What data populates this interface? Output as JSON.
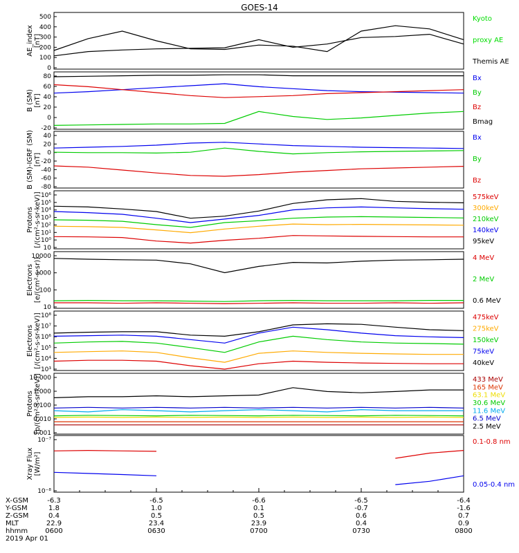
{
  "title": "GOES-14",
  "panels": [
    {
      "id": "ae",
      "ylabel": [
        "AE_index",
        "[nT]"
      ],
      "ticks": [
        "500",
        "400",
        "300",
        "200",
        "100",
        "0"
      ],
      "legend": [
        {
          "text": "Kyoto",
          "color": "#00dd00"
        },
        {
          "text": "proxy AE",
          "color": "#00dd00"
        },
        {
          "text": "Themis AE",
          "color": "#000000"
        }
      ]
    },
    {
      "id": "bsm",
      "ylabel": [
        "B (SM)",
        "[nT]"
      ],
      "ticks": [
        "80",
        "60",
        "40",
        "20",
        "0",
        "-20"
      ],
      "legend": [
        {
          "text": "Bx",
          "color": "#0000ee"
        },
        {
          "text": "By",
          "color": "#00cc00"
        },
        {
          "text": "Bz",
          "color": "#dd0000"
        },
        {
          "text": "Bmag",
          "color": "#000000"
        }
      ]
    },
    {
      "id": "bigrf",
      "ylabel": [
        "B (SM)-IGRF (SM)",
        "[nT]"
      ],
      "ticks": [
        "40",
        "20",
        "0",
        "-20",
        "-40",
        "-60",
        "-80"
      ],
      "legend": [
        {
          "text": "Bx",
          "color": "#0000ee"
        },
        {
          "text": "By",
          "color": "#00cc00"
        },
        {
          "text": "Bz",
          "color": "#dd0000"
        }
      ]
    },
    {
      "id": "protons1",
      "ylabel": [
        "Protons",
        "[/(cm²-s-sr-keV)]"
      ],
      "ticks": [
        "10⁶",
        "10⁵",
        "10⁴",
        "10³",
        "10²",
        "10¹",
        "10⁰",
        "10"
      ],
      "legend": [
        {
          "text": "575keV",
          "color": "#dd0000"
        },
        {
          "text": "300keV",
          "color": "#ffaa00"
        },
        {
          "text": "210keV",
          "color": "#00cc00"
        },
        {
          "text": "140keV",
          "color": "#0000ee"
        },
        {
          "text": "95keV",
          "color": "#000000"
        }
      ]
    },
    {
      "id": "electrons1",
      "ylabel": [
        "Electrons",
        "[e/(cm²-s-sr)]"
      ],
      "ticks": [
        "10000",
        "1000",
        "100",
        "10"
      ],
      "legend": [
        {
          "text": "4 MeV",
          "color": "#dd0000"
        },
        {
          "text": "2 MeV",
          "color": "#00cc00"
        },
        {
          "text": "0.6 MeV",
          "color": "#000000"
        }
      ]
    },
    {
      "id": "electrons2",
      "ylabel": [
        "Electrons",
        "[/(cm²-s-sr-keV)]"
      ],
      "ticks": [
        "10⁸",
        "10⁷",
        "10⁶",
        "10⁵",
        "10⁴",
        "10³"
      ],
      "legend": [
        {
          "text": "475keV",
          "color": "#dd0000"
        },
        {
          "text": "275keV",
          "color": "#ffaa00"
        },
        {
          "text": "150keV",
          "color": "#00cc00"
        },
        {
          "text": "75keV",
          "color": "#0000ee"
        },
        {
          "text": "40keV",
          "color": "#000000"
        }
      ]
    },
    {
      "id": "protons2",
      "ylabel": [
        "Protons",
        "[p/(cm²-s-sr-keV)]"
      ],
      "ticks": [
        "10.000",
        "1.000",
        "0.100",
        "0.010",
        "0.001"
      ],
      "legend": [
        {
          "text": "433 MeV",
          "color": "#aa0000"
        },
        {
          "text": "165 MeV",
          "color": "#dd3300"
        },
        {
          "text": "63.1 MeV",
          "color": "#eedd00"
        },
        {
          "text": "30.6 MeV",
          "color": "#00cc00"
        },
        {
          "text": "11.6 MeV",
          "color": "#00aaee"
        },
        {
          "text": "6.5 MeV",
          "color": "#0000cc"
        },
        {
          "text": "2.5 MeV",
          "color": "#000000"
        }
      ]
    },
    {
      "id": "xray",
      "ylabel": [
        "Xray Flux",
        "[W/m²]"
      ],
      "ticks": [
        "10⁻⁷",
        "10⁻⁸"
      ],
      "legend": [
        {
          "text": "0.1-0.8 nm",
          "color": "#dd0000"
        },
        {
          "text": "0.05-0.4 nm",
          "color": "#0000ee"
        }
      ]
    }
  ],
  "footer": {
    "rows": [
      {
        "label": "X-GSM",
        "values": [
          "-6.3",
          "-6.5",
          "-6.6",
          "-6.5",
          "-6.4"
        ]
      },
      {
        "label": "Y-GSM",
        "values": [
          "1.8",
          "1.0",
          "0.1",
          "-0.7",
          "-1.6"
        ]
      },
      {
        "label": "Z-GSM",
        "values": [
          "0.4",
          "0.5",
          "0.5",
          "0.6",
          "0.7"
        ]
      },
      {
        "label": "MLT",
        "values": [
          "22.9",
          "23.4",
          "23.9",
          "0.4",
          "0.9"
        ]
      },
      {
        "label": "hhmm",
        "values": [
          "0600",
          "0630",
          "0700",
          "0730",
          "0800"
        ]
      }
    ],
    "date": "2019 Apr 01"
  },
  "chart_data": [
    {
      "type": "line",
      "panel": "AE_index",
      "x": [
        "0600",
        "0610",
        "0620",
        "0630",
        "0640",
        "0650",
        "0700",
        "0710",
        "0720",
        "0730",
        "0740",
        "0750",
        "0800"
      ],
      "ylim": [
        0,
        500
      ],
      "series": [
        {
          "name": "Themis AE",
          "values": [
            160,
            270,
            340,
            250,
            175,
            170,
            210,
            200,
            150,
            340,
            390,
            360,
            260
          ]
        },
        {
          "name": "Kyoto proxy AE",
          "values": [
            110,
            150,
            165,
            175,
            180,
            185,
            260,
            190,
            220,
            280,
            290,
            310,
            220
          ]
        }
      ]
    },
    {
      "type": "line",
      "panel": "B (SM)",
      "ylim": [
        -25,
        85
      ],
      "series": [
        {
          "name": "Bx",
          "values": [
            45,
            48,
            52,
            56,
            60,
            64,
            58,
            54,
            50,
            48,
            47,
            46,
            45
          ]
        },
        {
          "name": "By",
          "values": [
            -20,
            -19,
            -18,
            -17,
            -17,
            -16,
            8,
            -2,
            -8,
            -5,
            0,
            5,
            8
          ]
        },
        {
          "name": "Bz",
          "values": [
            62,
            58,
            52,
            46,
            40,
            36,
            38,
            40,
            44,
            46,
            48,
            50,
            52
          ]
        },
        {
          "name": "Bmag",
          "values": [
            78,
            79,
            80,
            81,
            81,
            82,
            82,
            80,
            80,
            80,
            80,
            80,
            80
          ]
        }
      ]
    },
    {
      "type": "line",
      "panel": "B (SM)-IGRF (SM)",
      "ylim": [
        -85,
        45
      ],
      "series": [
        {
          "name": "Bx",
          "values": [
            8,
            10,
            12,
            15,
            20,
            22,
            18,
            14,
            12,
            10,
            9,
            8,
            7
          ]
        },
        {
          "name": "By",
          "values": [
            -2,
            -3,
            -3,
            -4,
            -2,
            8,
            0,
            -6,
            -3,
            -1,
            0,
            1,
            2
          ]
        },
        {
          "name": "Bz",
          "values": [
            -35,
            -38,
            -45,
            -52,
            -58,
            -60,
            -56,
            -50,
            -46,
            -42,
            -40,
            -38,
            -36
          ]
        }
      ]
    },
    {
      "type": "line",
      "panel": "Protons [/(cm2-s-sr-keV)]",
      "ylog": true,
      "ylim": [
        1,
        1000000
      ],
      "series": [
        {
          "name": "95keV",
          "values": [
            30000,
            25000,
            15000,
            8000,
            1500,
            2500,
            9000,
            60000,
            150000,
            200000,
            100000,
            80000,
            70000
          ]
        },
        {
          "name": "140keV",
          "values": [
            8000,
            6000,
            4000,
            1500,
            500,
            1200,
            3000,
            12000,
            20000,
            25000,
            20000,
            16000,
            14000
          ]
        },
        {
          "name": "210keV",
          "values": [
            1000,
            900,
            700,
            300,
            150,
            500,
            800,
            1500,
            2000,
            2200,
            2000,
            1800,
            1600
          ]
        },
        {
          "name": "300keV",
          "values": [
            200,
            180,
            150,
            80,
            40,
            100,
            200,
            350,
            300,
            320,
            300,
            280,
            260
          ]
        },
        {
          "name": "575keV",
          "values": [
            15,
            14,
            12,
            5,
            3,
            6,
            10,
            20,
            18,
            16,
            15,
            14,
            14
          ]
        }
      ]
    },
    {
      "type": "line",
      "panel": "Electrons [e/(cm2-s-sr)]",
      "ylog": true,
      "ylim": [
        10,
        10000
      ],
      "series": [
        {
          "name": "0.6 MeV",
          "values": [
            5000,
            4500,
            4200,
            4000,
            2500,
            800,
            1800,
            3000,
            2800,
            3500,
            4000,
            4200,
            4500
          ]
        },
        {
          "name": "2 MeV",
          "values": [
            22,
            23,
            22,
            22,
            21,
            20,
            22,
            23,
            22,
            22,
            22,
            23,
            23
          ]
        },
        {
          "name": "4 MeV",
          "values": [
            17,
            17,
            16,
            17,
            16,
            15,
            16,
            17,
            16,
            16,
            17,
            16,
            17
          ]
        }
      ]
    },
    {
      "type": "line",
      "panel": "Electrons [/(cm2-s-sr-keV)]",
      "ylog": true,
      "ylim": [
        1000,
        100000000
      ],
      "series": [
        {
          "name": "40keV",
          "values": [
            1500000,
            1800000,
            2000000,
            2000000,
            1000000,
            800000,
            2000000,
            8000000,
            10000000,
            9000000,
            5000000,
            3000000,
            2500000
          ]
        },
        {
          "name": "75keV",
          "values": [
            800000,
            900000,
            1000000,
            800000,
            400000,
            200000,
            1500000,
            5000000,
            3000000,
            1500000,
            900000,
            700000,
            600000
          ]
        },
        {
          "name": "150keV",
          "values": [
            200000,
            250000,
            280000,
            200000,
            80000,
            30000,
            250000,
            800000,
            400000,
            250000,
            200000,
            180000,
            160000
          ]
        },
        {
          "name": "275keV",
          "values": [
            30000,
            35000,
            40000,
            30000,
            10000,
            4000,
            25000,
            40000,
            30000,
            25000,
            22000,
            20000,
            20000
          ]
        },
        {
          "name": "475keV",
          "values": [
            5000,
            6000,
            6000,
            5000,
            2000,
            1000,
            3000,
            5000,
            4000,
            3500,
            3200,
            3000,
            3000
          ]
        }
      ]
    },
    {
      "type": "line",
      "panel": "Protons [p/(cm2-s-sr-keV)]",
      "ylog": true,
      "ylim": [
        0.001,
        30
      ],
      "series": [
        {
          "name": "2.5 MeV",
          "values": [
            0.5,
            0.6,
            0.6,
            0.7,
            0.6,
            0.7,
            0.8,
            3,
            1.5,
            1.2,
            1.5,
            2,
            2
          ]
        },
        {
          "name": "6.5 MeV",
          "values": [
            0.08,
            0.09,
            0.08,
            0.09,
            0.08,
            0.09,
            0.08,
            0.09,
            0.08,
            0.09,
            0.08,
            0.09,
            0.08
          ]
        },
        {
          "name": "11.6 MeV",
          "values": [
            0.05,
            0.04,
            0.06,
            0.05,
            0.04,
            0.05,
            0.06,
            0.05,
            0.04,
            0.06,
            0.05,
            0.05,
            0.05
          ]
        },
        {
          "name": "30.6 MeV",
          "values": [
            0.02,
            0.022,
            0.021,
            0.02,
            0.022,
            0.021,
            0.02,
            0.022,
            0.021,
            0.02,
            0.022,
            0.021,
            0.02
          ]
        },
        {
          "name": "63.1 MeV",
          "values": [
            0.015,
            0.016,
            0.015,
            0.016,
            0.015,
            0.016,
            0.015,
            0.016,
            0.015,
            0.016,
            0.015,
            0.016,
            0.015
          ]
        },
        {
          "name": "165 MeV",
          "values": [
            0.007,
            0.007,
            0.007,
            0.007,
            0.007,
            0.007,
            0.007,
            0.007,
            0.007,
            0.007,
            0.007,
            0.007,
            0.007
          ]
        },
        {
          "name": "433 MeV",
          "values": [
            0.004,
            0.004,
            0.004,
            0.004,
            0.004,
            0.004,
            0.004,
            0.004,
            0.004,
            0.004,
            0.004,
            0.004,
            0.004
          ]
        }
      ]
    },
    {
      "type": "line",
      "panel": "Xray Flux",
      "ylog": true,
      "ylim": [
        1e-08,
        1e-07
      ],
      "series": [
        {
          "name": "0.1-0.8 nm",
          "values": [
            5.5e-08,
            5.6e-08,
            5.5e-08,
            5.4e-08,
            null,
            null,
            null,
            null,
            null,
            null,
            4e-08,
            5e-08,
            5.6e-08
          ]
        },
        {
          "name": "0.05-0.4 nm",
          "values": [
            2.2e-08,
            2.1e-08,
            2e-08,
            1.9e-08,
            null,
            null,
            null,
            null,
            null,
            null,
            1.3e-08,
            1.5e-08,
            1.9e-08
          ]
        }
      ]
    }
  ]
}
